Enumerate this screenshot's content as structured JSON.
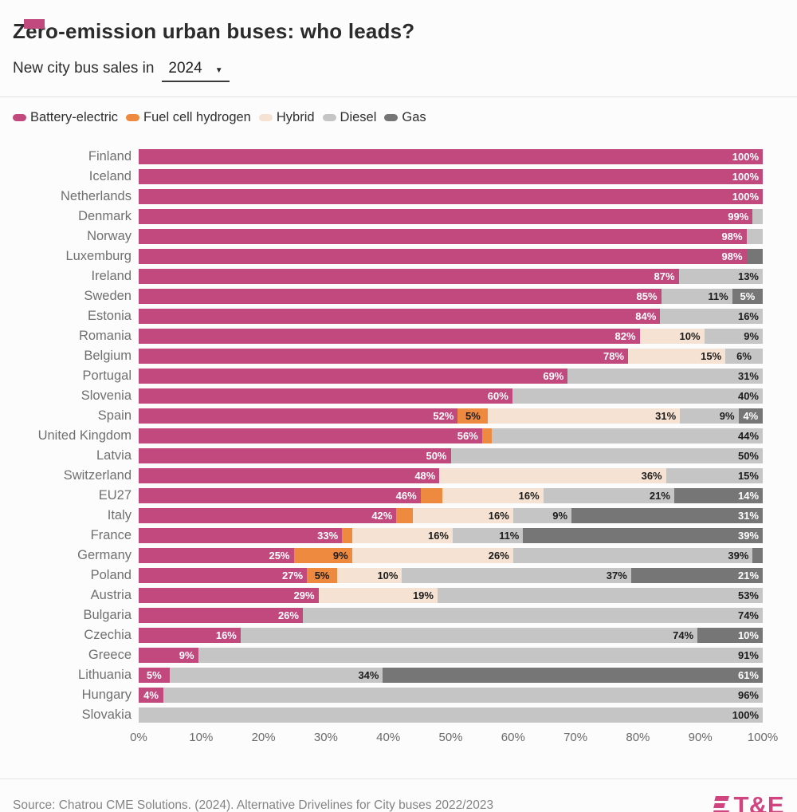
{
  "accent_color": "#c2497e",
  "header": {
    "title": "Zero-emission urban buses: who leads?",
    "subtitle_prefix": "New city bus sales in",
    "year_selector": "2024"
  },
  "icons": {
    "chevron_down": "▼"
  },
  "legend": [
    {
      "key": "be",
      "label": "Battery-electric"
    },
    {
      "key": "fch",
      "label": "Fuel cell hydrogen"
    },
    {
      "key": "hybrid",
      "label": "Hybrid"
    },
    {
      "key": "diesel",
      "label": "Diesel"
    },
    {
      "key": "gas",
      "label": "Gas"
    }
  ],
  "colors": {
    "be": "#c2497e",
    "fch": "#ee8a40",
    "hybrid": "#f6e2d2",
    "diesel": "#c5c5c5",
    "gas": "#767676"
  },
  "label_colors": {
    "be": "#ffffff",
    "fch": "#1c1c1c",
    "hybrid": "#1c1c1c",
    "diesel": "#1c1c1c",
    "gas": "#ffffff"
  },
  "chart_data": {
    "type": "bar",
    "orientation": "horizontal",
    "stacked": true,
    "unit": "%",
    "title": "Zero-emission urban buses: who leads?",
    "xlabel": "",
    "ylabel": "",
    "xlim": [
      0,
      100
    ],
    "x_ticks": [
      "0%",
      "10%",
      "20%",
      "30%",
      "40%",
      "50%",
      "60%",
      "70%",
      "80%",
      "90%",
      "100%"
    ],
    "series_keys": [
      "be",
      "fch",
      "hybrid",
      "diesel",
      "gas"
    ],
    "rows": [
      {
        "country": "Finland",
        "segments": [
          {
            "key": "be",
            "value": 100,
            "label": "100%"
          }
        ]
      },
      {
        "country": "Iceland",
        "segments": [
          {
            "key": "be",
            "value": 100,
            "label": "100%"
          }
        ]
      },
      {
        "country": "Netherlands",
        "segments": [
          {
            "key": "be",
            "value": 100,
            "label": "100%"
          }
        ]
      },
      {
        "country": "Denmark",
        "segments": [
          {
            "key": "be",
            "value": 99,
            "label": "99%"
          },
          {
            "key": "diesel",
            "value": 1,
            "label": null
          }
        ]
      },
      {
        "country": "Norway",
        "segments": [
          {
            "key": "be",
            "value": 98,
            "label": "98%"
          },
          {
            "key": "diesel",
            "value": 2,
            "label": null
          }
        ]
      },
      {
        "country": "Luxemburg",
        "segments": [
          {
            "key": "be",
            "value": 98,
            "label": "98%"
          },
          {
            "key": "gas",
            "value": 2,
            "label": null
          }
        ]
      },
      {
        "country": "Ireland",
        "segments": [
          {
            "key": "be",
            "value": 87,
            "label": "87%"
          },
          {
            "key": "diesel",
            "value": 13,
            "label": "13%"
          }
        ]
      },
      {
        "country": "Sweden",
        "segments": [
          {
            "key": "be",
            "value": 85,
            "label": "85%"
          },
          {
            "key": "diesel",
            "value": 11,
            "label": "11%"
          },
          {
            "key": "gas",
            "value": 5,
            "label": "5%"
          }
        ]
      },
      {
        "country": "Estonia",
        "segments": [
          {
            "key": "be",
            "value": 84,
            "label": "84%"
          },
          {
            "key": "diesel",
            "value": 16,
            "label": "16%"
          }
        ]
      },
      {
        "country": "Romania",
        "segments": [
          {
            "key": "be",
            "value": 82,
            "label": "82%"
          },
          {
            "key": "hybrid",
            "value": 10,
            "label": "10%"
          },
          {
            "key": "diesel",
            "value": 9,
            "label": "9%"
          }
        ]
      },
      {
        "country": "Belgium",
        "segments": [
          {
            "key": "be",
            "value": 78,
            "label": "78%"
          },
          {
            "key": "hybrid",
            "value": 15,
            "label": "15%"
          },
          {
            "key": "diesel",
            "value": 6,
            "label": "6%"
          }
        ]
      },
      {
        "country": "Portugal",
        "segments": [
          {
            "key": "be",
            "value": 69,
            "label": "69%"
          },
          {
            "key": "diesel",
            "value": 31,
            "label": "31%"
          }
        ]
      },
      {
        "country": "Slovenia",
        "segments": [
          {
            "key": "be",
            "value": 60,
            "label": "60%"
          },
          {
            "key": "diesel",
            "value": 40,
            "label": "40%"
          }
        ]
      },
      {
        "country": "Spain",
        "segments": [
          {
            "key": "be",
            "value": 52,
            "label": "52%"
          },
          {
            "key": "fch",
            "value": 5,
            "label": "5%"
          },
          {
            "key": "hybrid",
            "value": 31,
            "label": "31%"
          },
          {
            "key": "diesel",
            "value": 9,
            "label": "9%"
          },
          {
            "key": "gas",
            "value": 4,
            "label": "4%"
          }
        ]
      },
      {
        "country": "United Kingdom",
        "segments": [
          {
            "key": "be",
            "value": 56,
            "label": "56%"
          },
          {
            "key": "fch",
            "value": 1,
            "label": null
          },
          {
            "key": "diesel",
            "value": 44,
            "label": "44%"
          }
        ]
      },
      {
        "country": "Latvia",
        "segments": [
          {
            "key": "be",
            "value": 50,
            "label": "50%"
          },
          {
            "key": "diesel",
            "value": 50,
            "label": "50%"
          }
        ]
      },
      {
        "country": "Switzerland",
        "segments": [
          {
            "key": "be",
            "value": 48,
            "label": "48%"
          },
          {
            "key": "hybrid",
            "value": 36,
            "label": "36%"
          },
          {
            "key": "diesel",
            "value": 15,
            "label": "15%"
          }
        ]
      },
      {
        "country": "EU27",
        "segments": [
          {
            "key": "be",
            "value": 46,
            "label": "46%"
          },
          {
            "key": "fch",
            "value": 3,
            "label": null
          },
          {
            "key": "hybrid",
            "value": 16,
            "label": "16%"
          },
          {
            "key": "diesel",
            "value": 21,
            "label": "21%"
          },
          {
            "key": "gas",
            "value": 14,
            "label": "14%"
          }
        ]
      },
      {
        "country": "Italy",
        "segments": [
          {
            "key": "be",
            "value": 42,
            "label": "42%"
          },
          {
            "key": "fch",
            "value": 2,
            "label": null
          },
          {
            "key": "hybrid",
            "value": 16,
            "label": "16%"
          },
          {
            "key": "diesel",
            "value": 9,
            "label": "9%"
          },
          {
            "key": "gas",
            "value": 31,
            "label": "31%"
          }
        ]
      },
      {
        "country": "France",
        "segments": [
          {
            "key": "be",
            "value": 33,
            "label": "33%"
          },
          {
            "key": "fch",
            "value": 1,
            "label": null
          },
          {
            "key": "hybrid",
            "value": 16,
            "label": "16%"
          },
          {
            "key": "diesel",
            "value": 11,
            "label": "11%"
          },
          {
            "key": "gas",
            "value": 39,
            "label": "39%"
          }
        ]
      },
      {
        "country": "Germany",
        "segments": [
          {
            "key": "be",
            "value": 25,
            "label": "25%"
          },
          {
            "key": "fch",
            "value": 9,
            "label": "9%"
          },
          {
            "key": "hybrid",
            "value": 26,
            "label": "26%"
          },
          {
            "key": "diesel",
            "value": 39,
            "label": "39%"
          },
          {
            "key": "gas",
            "value": 1,
            "label": null
          }
        ]
      },
      {
        "country": "Poland",
        "segments": [
          {
            "key": "be",
            "value": 27,
            "label": "27%"
          },
          {
            "key": "fch",
            "value": 5,
            "label": "5%"
          },
          {
            "key": "hybrid",
            "value": 10,
            "label": "10%"
          },
          {
            "key": "diesel",
            "value": 37,
            "label": "37%"
          },
          {
            "key": "gas",
            "value": 21,
            "label": "21%"
          }
        ]
      },
      {
        "country": "Austria",
        "segments": [
          {
            "key": "be",
            "value": 29,
            "label": "29%"
          },
          {
            "key": "hybrid",
            "value": 19,
            "label": "19%"
          },
          {
            "key": "diesel",
            "value": 53,
            "label": "53%"
          }
        ]
      },
      {
        "country": "Bulgaria",
        "segments": [
          {
            "key": "be",
            "value": 26,
            "label": "26%"
          },
          {
            "key": "diesel",
            "value": 74,
            "label": "74%"
          }
        ]
      },
      {
        "country": "Czechia",
        "segments": [
          {
            "key": "be",
            "value": 16,
            "label": "16%"
          },
          {
            "key": "diesel",
            "value": 74,
            "label": "74%"
          },
          {
            "key": "gas",
            "value": 10,
            "label": "10%"
          }
        ]
      },
      {
        "country": "Greece",
        "segments": [
          {
            "key": "be",
            "value": 9,
            "label": "9%"
          },
          {
            "key": "diesel",
            "value": 91,
            "label": "91%"
          }
        ]
      },
      {
        "country": "Lithuania",
        "segments": [
          {
            "key": "be",
            "value": 5,
            "label": "5%"
          },
          {
            "key": "diesel",
            "value": 34,
            "label": "34%"
          },
          {
            "key": "gas",
            "value": 61,
            "label": "61%"
          }
        ]
      },
      {
        "country": "Hungary",
        "segments": [
          {
            "key": "be",
            "value": 4,
            "label": "4%"
          },
          {
            "key": "diesel",
            "value": 96,
            "label": "96%"
          }
        ]
      },
      {
        "country": "Slovakia",
        "segments": [
          {
            "key": "diesel",
            "value": 100,
            "label": "100%"
          }
        ]
      }
    ]
  },
  "footer": {
    "source": "Source: Chatrou CME Solutions. (2024). Alternative Drivelines for City buses 2022/2023",
    "logo_text": "T&E"
  }
}
